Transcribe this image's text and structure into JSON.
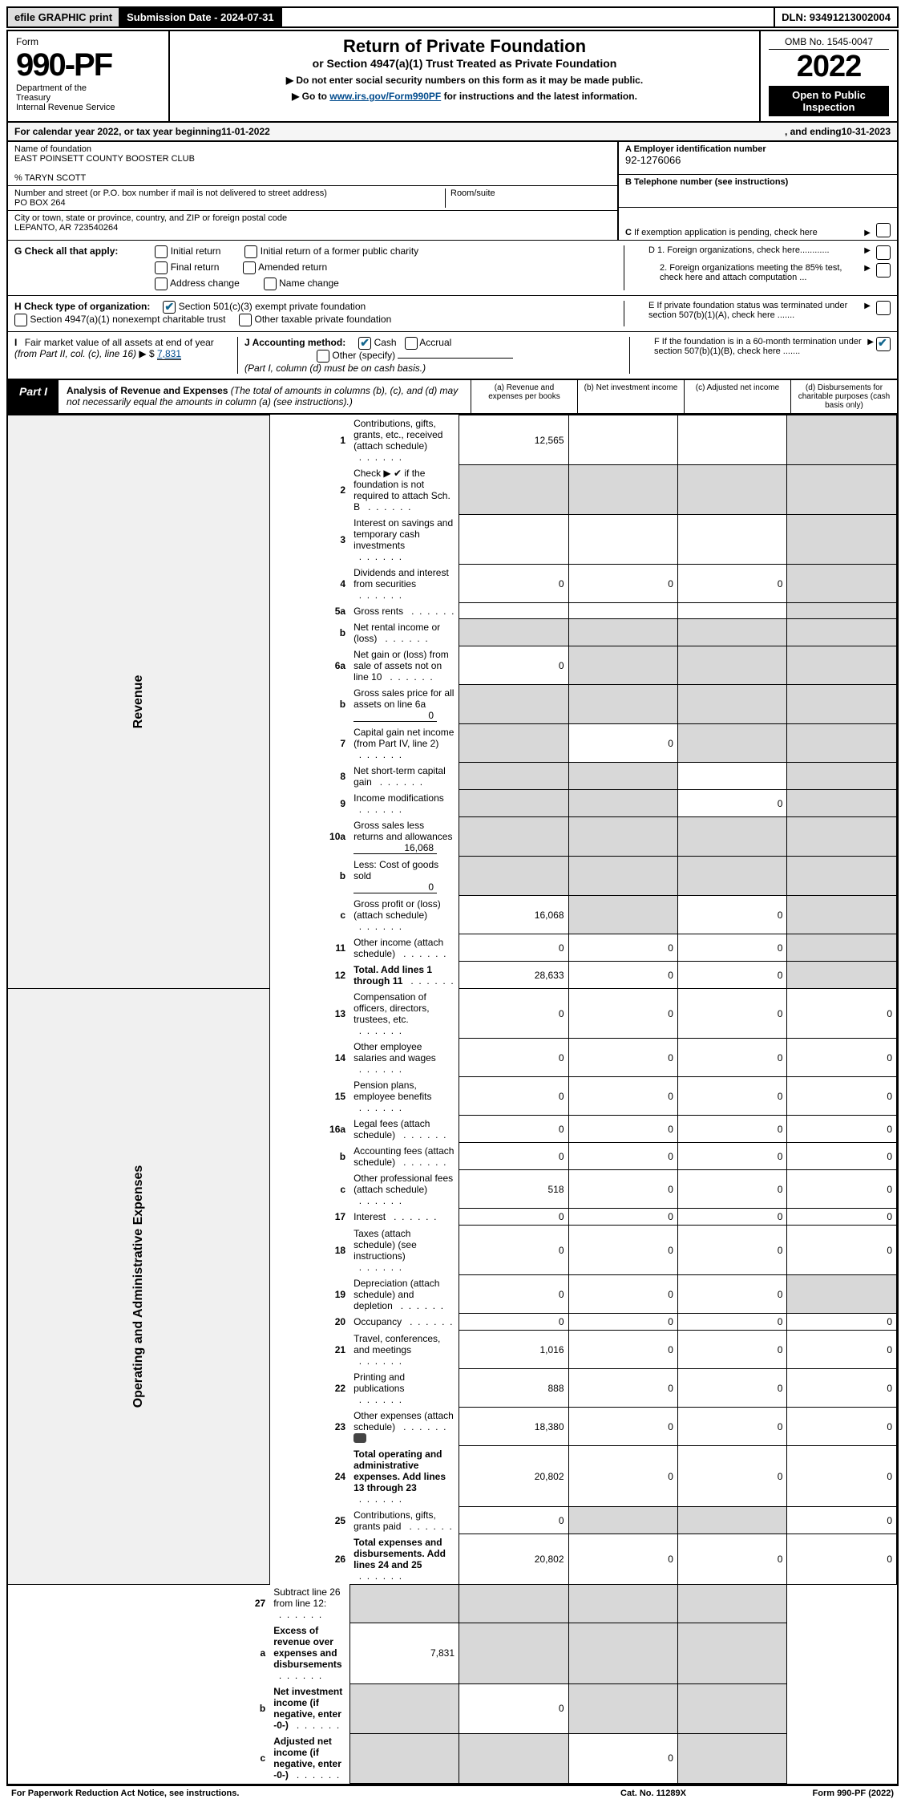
{
  "header": {
    "efile": "efile GRAPHIC print",
    "sub_date_label": "Submission Date - 2024-07-31",
    "dln": "DLN: 93491213002004"
  },
  "formhead": {
    "form_word": "Form",
    "form_num": "990-PF",
    "dept1": "Department of the",
    "dept2": "Treasury",
    "dept3": "Internal Revenue Service",
    "title": "Return of Private Foundation",
    "subtitle": "or Section 4947(a)(1) Trust Treated as Private Foundation",
    "instr1": "▶ Do not enter social security numbers on this form as it may be made public.",
    "instr2_prefix": "▶ Go to ",
    "instr2_link": "www.irs.gov/Form990PF",
    "instr2_suffix": " for instructions and the latest information.",
    "omb": "OMB No. 1545-0047",
    "year": "2022",
    "open": "Open to Public Inspection"
  },
  "cal": {
    "prefix": "For calendar year 2022, or tax year beginning ",
    "begin": "11-01-2022",
    "mid": ", and ending ",
    "end": "10-31-2023"
  },
  "left": {
    "name_lbl": "Name of foundation",
    "name": "EAST POINSETT COUNTY BOOSTER CLUB",
    "care_of": "% TARYN SCOTT",
    "addr_lbl": "Number and street (or P.O. box number if mail is not delivered to street address)",
    "addr": "PO BOX 264",
    "room_lbl": "Room/suite",
    "city_lbl": "City or town, state or province, country, and ZIP or foreign postal code",
    "city": "LEPANTO, AR  723540264"
  },
  "right": {
    "a_lbl": "A Employer identification number",
    "a_val": "92-1276066",
    "b_lbl": "B Telephone number (see instructions)",
    "c_lbl": "C If exemption application is pending, check here",
    "d1": "D 1. Foreign organizations, check here............",
    "d2": "2. Foreign organizations meeting the 85% test, check here and attach computation ...",
    "e_lbl": "E  If private foundation status was terminated under section 507(b)(1)(A), check here .......",
    "f_lbl": "F  If the foundation is in a 60-month termination under section 507(b)(1)(B), check here .......",
    "f_checked": true
  },
  "g": {
    "label": "G Check all that apply:",
    "opts": [
      "Initial return",
      "Initial return of a former public charity",
      "Final return",
      "Amended return",
      "Address change",
      "Name change"
    ]
  },
  "h": {
    "label": "H Check type of organization:",
    "o1": "Section 501(c)(3) exempt private foundation",
    "o2": "Section 4947(a)(1) nonexempt charitable trust",
    "o3": "Other taxable private foundation"
  },
  "i": {
    "label": "I Fair market value of all assets at end of year (from Part II, col. (c), line 16)",
    "pre": "▶ $",
    "val": "7,831"
  },
  "j": {
    "label": "J Accounting method:",
    "cash": "Cash",
    "accrual": "Accrual",
    "other": "Other (specify)",
    "note": "(Part I, column (d) must be on cash basis.)"
  },
  "part1": {
    "tab": "Part I",
    "title": "Analysis of Revenue and Expenses",
    "note": "(The total of amounts in columns (b), (c), and (d) may not necessarily equal the amounts in column (a) (see instructions).)",
    "cols": {
      "a": "(a)   Revenue and expenses per books",
      "b": "(b)   Net investment income",
      "c": "(c)   Adjusted net income",
      "d": "(d)   Disbursements for charitable purposes (cash basis only)"
    }
  },
  "side": {
    "rev": "Revenue",
    "ops": "Operating and Administrative Expenses"
  },
  "rows": {
    "r1": {
      "n": "1",
      "d": "Contributions, gifts, grants, etc., received (attach schedule)",
      "a": "12,565",
      "b": "",
      "c": "",
      "dd": "",
      "gb": "",
      "gc": "",
      "gd": "grey"
    },
    "r2": {
      "n": "2",
      "d": "Check ▶ ✔ if the foundation is not required to attach Sch. B",
      "a": "",
      "b": "",
      "c": "",
      "dd": "",
      "ga": "grey",
      "gb": "grey",
      "gc": "grey",
      "gd": "grey",
      "bold_not": " "
    },
    "r3": {
      "n": "3",
      "d": "Interest on savings and temporary cash investments",
      "a": "",
      "b": "",
      "c": "",
      "dd": "",
      "gd": "grey"
    },
    "r4": {
      "n": "4",
      "d": "Dividends and interest from securities",
      "a": "0",
      "b": "0",
      "c": "0",
      "dd": "",
      "gd": "grey"
    },
    "r5a": {
      "n": "5a",
      "d": "Gross rents",
      "a": "",
      "b": "",
      "c": "",
      "dd": "",
      "gd": "grey"
    },
    "r5b": {
      "n": "b",
      "d": "Net rental income or (loss)",
      "a": "",
      "b": "",
      "c": "",
      "dd": "",
      "ga": "grey",
      "gb": "grey",
      "gc": "grey",
      "gd": "grey"
    },
    "r6a": {
      "n": "6a",
      "d": "Net gain or (loss) from sale of assets not on line 10",
      "a": "0",
      "b": "",
      "c": "",
      "dd": "",
      "gb": "grey",
      "gc": "grey",
      "gd": "grey"
    },
    "r6b": {
      "n": "b",
      "d": "Gross sales price for all assets on line 6a",
      "sub": "0",
      "ga": "grey",
      "gb": "grey",
      "gc": "grey",
      "gd": "grey"
    },
    "r7": {
      "n": "7",
      "d": "Capital gain net income (from Part IV, line 2)",
      "a": "",
      "b": "0",
      "c": "",
      "dd": "",
      "ga": "grey",
      "gc": "grey",
      "gd": "grey"
    },
    "r8": {
      "n": "8",
      "d": "Net short-term capital gain",
      "a": "",
      "b": "",
      "c": "",
      "dd": "",
      "ga": "grey",
      "gb": "grey",
      "gd": "grey"
    },
    "r9": {
      "n": "9",
      "d": "Income modifications",
      "a": "",
      "b": "",
      "c": "0",
      "dd": "",
      "ga": "grey",
      "gb": "grey",
      "gd": "grey"
    },
    "r10a": {
      "n": "10a",
      "d": "Gross sales less returns and allowances",
      "sub": "16,068",
      "ga": "grey",
      "gb": "grey",
      "gc": "grey",
      "gd": "grey"
    },
    "r10b": {
      "n": "b",
      "d": "Less: Cost of goods sold",
      "sub": "0",
      "ga": "grey",
      "gb": "grey",
      "gc": "grey",
      "gd": "grey"
    },
    "r10c": {
      "n": "c",
      "d": "Gross profit or (loss) (attach schedule)",
      "a": "16,068",
      "b": "",
      "c": "0",
      "dd": "",
      "gb": "grey",
      "gd": "grey"
    },
    "r11": {
      "n": "11",
      "d": "Other income (attach schedule)",
      "a": "0",
      "b": "0",
      "c": "0",
      "dd": "",
      "gd": "grey"
    },
    "r12": {
      "n": "12",
      "d": "Total. Add lines 1 through 11",
      "a": "28,633",
      "b": "0",
      "c": "0",
      "dd": "",
      "gd": "grey",
      "bold": true
    },
    "r13": {
      "n": "13",
      "d": "Compensation of officers, directors, trustees, etc.",
      "a": "0",
      "b": "0",
      "c": "0",
      "dd": "0"
    },
    "r14": {
      "n": "14",
      "d": "Other employee salaries and wages",
      "a": "0",
      "b": "0",
      "c": "0",
      "dd": "0"
    },
    "r15": {
      "n": "15",
      "d": "Pension plans, employee benefits",
      "a": "0",
      "b": "0",
      "c": "0",
      "dd": "0"
    },
    "r16a": {
      "n": "16a",
      "d": "Legal fees (attach schedule)",
      "a": "0",
      "b": "0",
      "c": "0",
      "dd": "0"
    },
    "r16b": {
      "n": "b",
      "d": "Accounting fees (attach schedule)",
      "a": "0",
      "b": "0",
      "c": "0",
      "dd": "0"
    },
    "r16c": {
      "n": "c",
      "d": "Other professional fees (attach schedule)",
      "a": "518",
      "b": "0",
      "c": "0",
      "dd": "0"
    },
    "r17": {
      "n": "17",
      "d": "Interest",
      "a": "0",
      "b": "0",
      "c": "0",
      "dd": "0"
    },
    "r18": {
      "n": "18",
      "d": "Taxes (attach schedule) (see instructions)",
      "a": "0",
      "b": "0",
      "c": "0",
      "dd": "0"
    },
    "r19": {
      "n": "19",
      "d": "Depreciation (attach schedule) and depletion",
      "a": "0",
      "b": "0",
      "c": "0",
      "dd": "",
      "gd": "grey"
    },
    "r20": {
      "n": "20",
      "d": "Occupancy",
      "a": "0",
      "b": "0",
      "c": "0",
      "dd": "0"
    },
    "r21": {
      "n": "21",
      "d": "Travel, conferences, and meetings",
      "a": "1,016",
      "b": "0",
      "c": "0",
      "dd": "0"
    },
    "r22": {
      "n": "22",
      "d": "Printing and publications",
      "a": "888",
      "b": "0",
      "c": "0",
      "dd": "0"
    },
    "r23": {
      "n": "23",
      "d": "Other expenses (attach schedule)",
      "a": "18,380",
      "b": "0",
      "c": "0",
      "dd": "0",
      "icon": true
    },
    "r24": {
      "n": "24",
      "d": "Total operating and administrative expenses. Add lines 13 through 23",
      "a": "20,802",
      "b": "0",
      "c": "0",
      "dd": "0",
      "bold": true
    },
    "r25": {
      "n": "25",
      "d": "Contributions, gifts, grants paid",
      "a": "0",
      "b": "",
      "c": "",
      "dd": "0",
      "gb": "grey",
      "gc": "grey"
    },
    "r26": {
      "n": "26",
      "d": "Total expenses and disbursements. Add lines 24 and 25",
      "a": "20,802",
      "b": "0",
      "c": "0",
      "dd": "0",
      "bold": true
    },
    "r27": {
      "n": "27",
      "d": "Subtract line 26 from line 12:",
      "ga": "grey",
      "gb": "grey",
      "gc": "grey",
      "gd": "grey"
    },
    "r27a": {
      "n": "a",
      "d": "Excess of revenue over expenses and disbursements",
      "a": "7,831",
      "b": "",
      "c": "",
      "dd": "",
      "gb": "grey",
      "gc": "grey",
      "gd": "grey",
      "bold": true
    },
    "r27b": {
      "n": "b",
      "d": "Net investment income (if negative, enter -0-)",
      "a": "",
      "b": "0",
      "c": "",
      "dd": "",
      "ga": "grey",
      "gc": "grey",
      "gd": "grey",
      "bold": true
    },
    "r27c": {
      "n": "c",
      "d": "Adjusted net income (if negative, enter -0-)",
      "a": "",
      "b": "",
      "c": "0",
      "dd": "",
      "ga": "grey",
      "gb": "grey",
      "gd": "grey",
      "bold": true
    }
  },
  "rowkeys_rev": [
    "r1",
    "r2",
    "r3",
    "r4",
    "r5a",
    "r5b",
    "r6a",
    "r6b",
    "r7",
    "r8",
    "r9",
    "r10a",
    "r10b",
    "r10c",
    "r11",
    "r12"
  ],
  "rowkeys_ops": [
    "r13",
    "r14",
    "r15",
    "r16a",
    "r16b",
    "r16c",
    "r17",
    "r18",
    "r19",
    "r20",
    "r21",
    "r22",
    "r23",
    "r24",
    "r25",
    "r26"
  ],
  "rowkeys_bot": [
    "r27",
    "r27a",
    "r27b",
    "r27c"
  ],
  "footer": {
    "left": "For Paperwork Reduction Act Notice, see instructions.",
    "cat": "Cat. No. 11289X",
    "right": "Form 990-PF (2022)"
  },
  "colors": {
    "link": "#004b8d",
    "check": "#12668e",
    "grey_cell": "#d8d8d8",
    "greybg": "#f5f5f5"
  }
}
